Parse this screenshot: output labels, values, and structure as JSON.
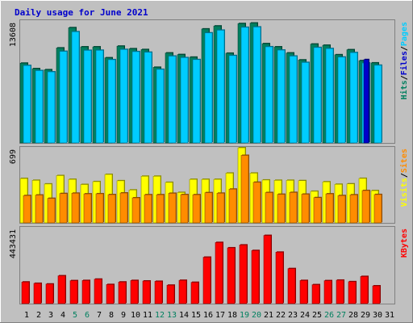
{
  "chart_data": {
    "type": "bar",
    "title": "Daily usage for June 2021",
    "categories": [
      "1",
      "2",
      "3",
      "4",
      "5",
      "6",
      "7",
      "8",
      "9",
      "10",
      "11",
      "12",
      "13",
      "14",
      "15",
      "16",
      "17",
      "18",
      "19",
      "20",
      "21",
      "22",
      "23",
      "24",
      "25",
      "26",
      "27",
      "28",
      "29",
      "30",
      "31"
    ],
    "weekend_days": [
      "5",
      "6",
      "12",
      "13",
      "19",
      "20",
      "26",
      "27"
    ],
    "colors": {
      "background": "#C0C0C0",
      "frame": "#808080",
      "hits": "#007F5F",
      "files": "#00CCFF",
      "pages": "#0000CC",
      "visits": "#FFFF00",
      "sites": "#FF8C00",
      "kbytes": "#FF0000",
      "title": "#0000CC",
      "weekday_label": "#000000",
      "weekend_label": "#00805F"
    },
    "panels": [
      {
        "id": "hits-files-pages",
        "max_label": "13608",
        "ymax": 13608,
        "legend": [
          {
            "text": "Hits",
            "color": "#007F5F"
          },
          {
            "text": "Files",
            "color": "#0000CC"
          },
          {
            "text": "Pages",
            "color": "#00CCFF"
          }
        ],
        "series": [
          {
            "name": "Hits",
            "values": [
              8900,
              8290,
              8170,
              10600,
              12860,
              10720,
              10720,
              9500,
              10800,
              10510,
              10420,
              8440,
              10040,
              9860,
              9570,
              12720,
              13050,
              10010,
              13320,
              13380,
              11080,
              10720,
              10040,
              9260,
              11030,
              10900,
              9840,
              10400,
              9180,
              8930,
              0
            ]
          },
          {
            "name": "Files",
            "values": [
              8640,
              8070,
              7930,
              10220,
              12410,
              10330,
              10340,
              9290,
              10430,
              10190,
              10120,
              8210,
              9690,
              9520,
              9300,
              12280,
              12580,
              9750,
              12900,
              12940,
              10730,
              10360,
              9690,
              8980,
              10650,
              10530,
              9580,
              10080,
              8920,
              8670,
              0
            ]
          },
          {
            "name": "Pages",
            "values": [
              0,
              0,
              0,
              0,
              0,
              0,
              0,
              0,
              0,
              0,
              0,
              0,
              0,
              0,
              0,
              0,
              0,
              0,
              0,
              0,
              0,
              0,
              0,
              0,
              0,
              0,
              0,
              0,
              9300,
              0,
              0
            ]
          }
        ]
      },
      {
        "id": "visits-sites",
        "max_label": "699",
        "ymax": 699,
        "legend": [
          {
            "text": "Visits",
            "color": "#FFFF00"
          },
          {
            "text": "Sites",
            "color": "#FF8C00"
          }
        ],
        "series": [
          {
            "name": "Visits",
            "values": [
              413,
              396,
              362,
              440,
              405,
              357,
              384,
              451,
              392,
              306,
              434,
              434,
              377,
              283,
              405,
              405,
              405,
              463,
              699,
              463,
              399,
              396,
              396,
              393,
              294,
              382,
              359,
              363,
              414,
              300,
              0
            ]
          },
          {
            "name": "Sites",
            "values": [
              254,
              259,
              228,
              273,
              276,
              270,
              271,
              263,
              278,
              233,
              262,
              262,
              275,
              263,
              262,
              281,
              276,
              314,
              628,
              378,
              282,
              266,
              283,
              267,
              235,
              270,
              254,
              261,
              301,
              264,
              0
            ]
          }
        ]
      },
      {
        "id": "kbytes",
        "max_label": "443431",
        "ymax": 443431,
        "legend": [
          {
            "text": "KBytes",
            "color": "#FF0000"
          }
        ],
        "series": [
          {
            "name": "KBytes",
            "values": [
              129000,
              121000,
              117000,
              166000,
              137000,
              138000,
              146000,
              114000,
              129000,
              138000,
              135000,
              133000,
              110000,
              139000,
              127000,
              277000,
              365000,
              333000,
              350000,
              317000,
              407000,
              307000,
              209000,
              138000,
              113000,
              137000,
              140000,
              131000,
              162000,
              106000,
              0
            ]
          }
        ]
      }
    ]
  }
}
